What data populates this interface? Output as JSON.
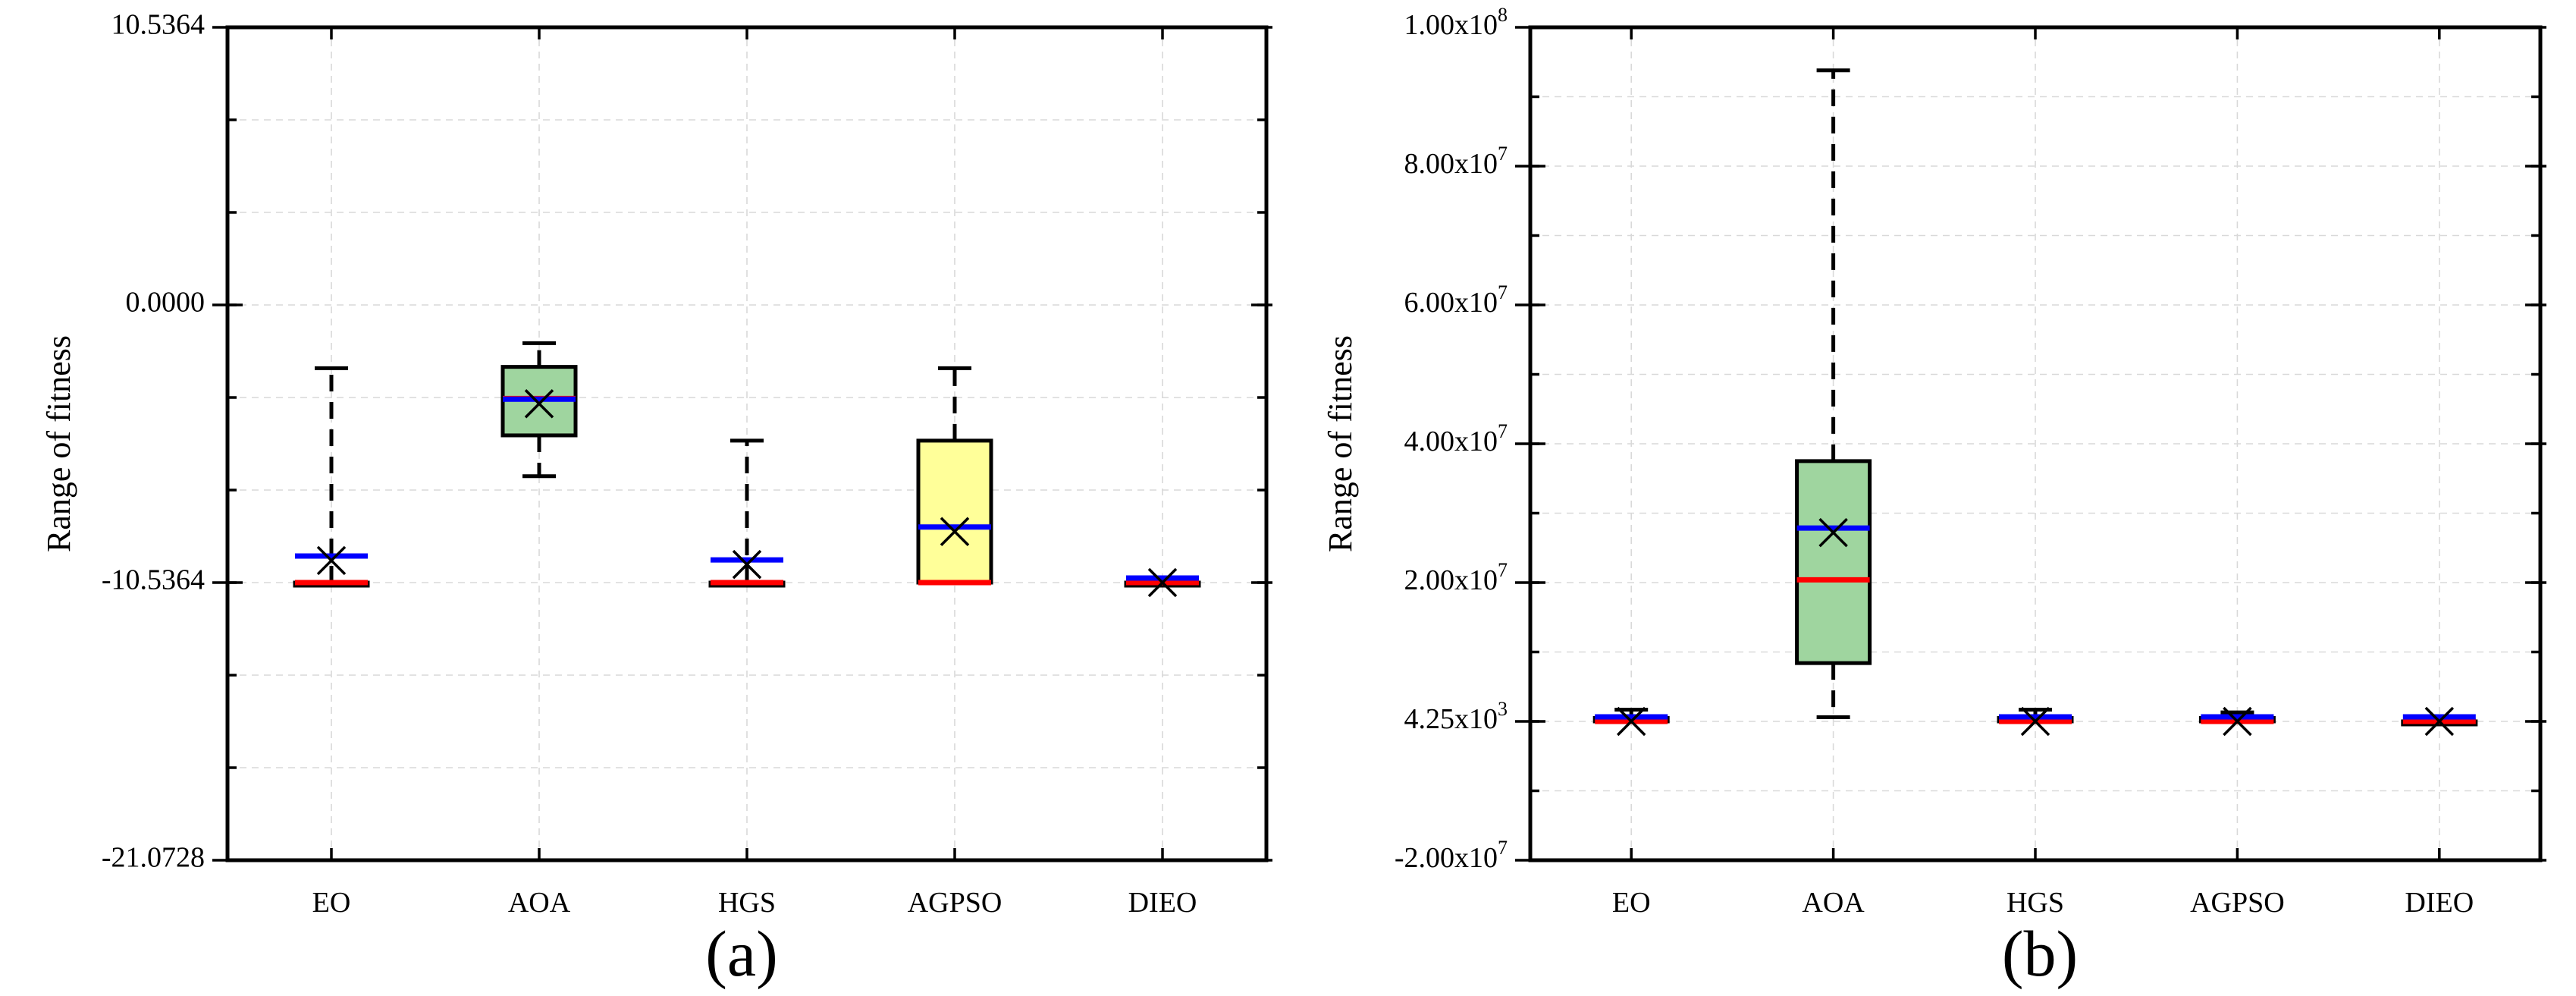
{
  "figure": {
    "panels": [
      "(a)",
      "(b)"
    ]
  },
  "chart_data": [
    {
      "type": "box",
      "panel_label": "(a)",
      "title": "",
      "xlabel": "",
      "ylabel": "Range of fitness",
      "ylim": [
        -21.0728,
        10.5364
      ],
      "yticks": [
        -21.0728,
        -10.5364,
        0.0,
        10.5364
      ],
      "ytick_labels": [
        "-21.0728",
        "-10.5364",
        "0.0000",
        "10.5364"
      ],
      "minor_step": 3.5121,
      "grid": true,
      "categories": [
        "EO",
        "AOA",
        "HGS",
        "AGPSO",
        "DIEO"
      ],
      "boxes": [
        {
          "label": "EO",
          "min": -10.5364,
          "q1": -10.5364,
          "median": -10.5364,
          "q3": -10.5364,
          "max": -2.4,
          "mean": -9.7,
          "fill": null
        },
        {
          "label": "AOA",
          "min": -6.5,
          "q1": -4.95,
          "median": -3.55,
          "q3": -2.35,
          "max": -1.45,
          "mean": -3.75,
          "fill": "#9fd59f"
        },
        {
          "label": "HGS",
          "min": -10.5364,
          "q1": -10.5364,
          "median": -10.5364,
          "q3": -10.5364,
          "max": -5.15,
          "mean": -9.85,
          "fill": null
        },
        {
          "label": "AGPSO",
          "min": -10.5364,
          "q1": -10.5364,
          "median": -10.5364,
          "q3": -5.15,
          "max": -2.4,
          "mean": -8.6,
          "fill": "#ffff99"
        },
        {
          "label": "DIEO",
          "min": -10.5364,
          "q1": -10.5364,
          "median": -10.5364,
          "q3": -10.5364,
          "max": -10.5364,
          "mean": -10.5364,
          "fill": null
        }
      ]
    },
    {
      "type": "box",
      "panel_label": "(b)",
      "title": "",
      "xlabel": "",
      "ylabel": "Range of fitness",
      "ylim": [
        -20000000,
        100000000
      ],
      "yticks": [
        -20000000,
        4250,
        20000000,
        40000000,
        60000000,
        80000000,
        100000000
      ],
      "ytick_labels": [
        "-2.00x10^7",
        "4.25x10^3",
        "2.00x10^7",
        "4.00x10^7",
        "6.00x10^7",
        "8.00x10^7",
        "1.00x10^8"
      ],
      "minor_step": 10000000,
      "grid": true,
      "categories": [
        "EO",
        "AOA",
        "HGS",
        "AGPSO",
        "DIEO"
      ],
      "boxes": [
        {
          "label": "EO",
          "min": 4250,
          "q1": 4250,
          "median": 4250,
          "q3": 500000,
          "max": 1700000,
          "mean": 4250,
          "fill": null
        },
        {
          "label": "AOA",
          "min": 600000,
          "q1": 8400000,
          "median": 20400000,
          "q3": 37500000,
          "max": 93800000,
          "mean": 27200000,
          "fill": "#9fd59f"
        },
        {
          "label": "HGS",
          "min": 4250,
          "q1": 4250,
          "median": 4250,
          "q3": 500000,
          "max": 1700000,
          "mean": 4250,
          "fill": null
        },
        {
          "label": "AGPSO",
          "min": 4250,
          "q1": 4250,
          "median": 4250,
          "q3": 500000,
          "max": 1300000,
          "mean": 4250,
          "fill": null
        },
        {
          "label": "DIEO",
          "min": 4250,
          "q1": 4250,
          "median": 4250,
          "q3": 4250,
          "max": 4250,
          "mean": 4250,
          "fill": null
        }
      ]
    }
  ],
  "colors": {
    "median": "#ff0000",
    "mean_line": "#0000ff",
    "box_edge": "#000000",
    "grid": "#d9d9d9"
  }
}
